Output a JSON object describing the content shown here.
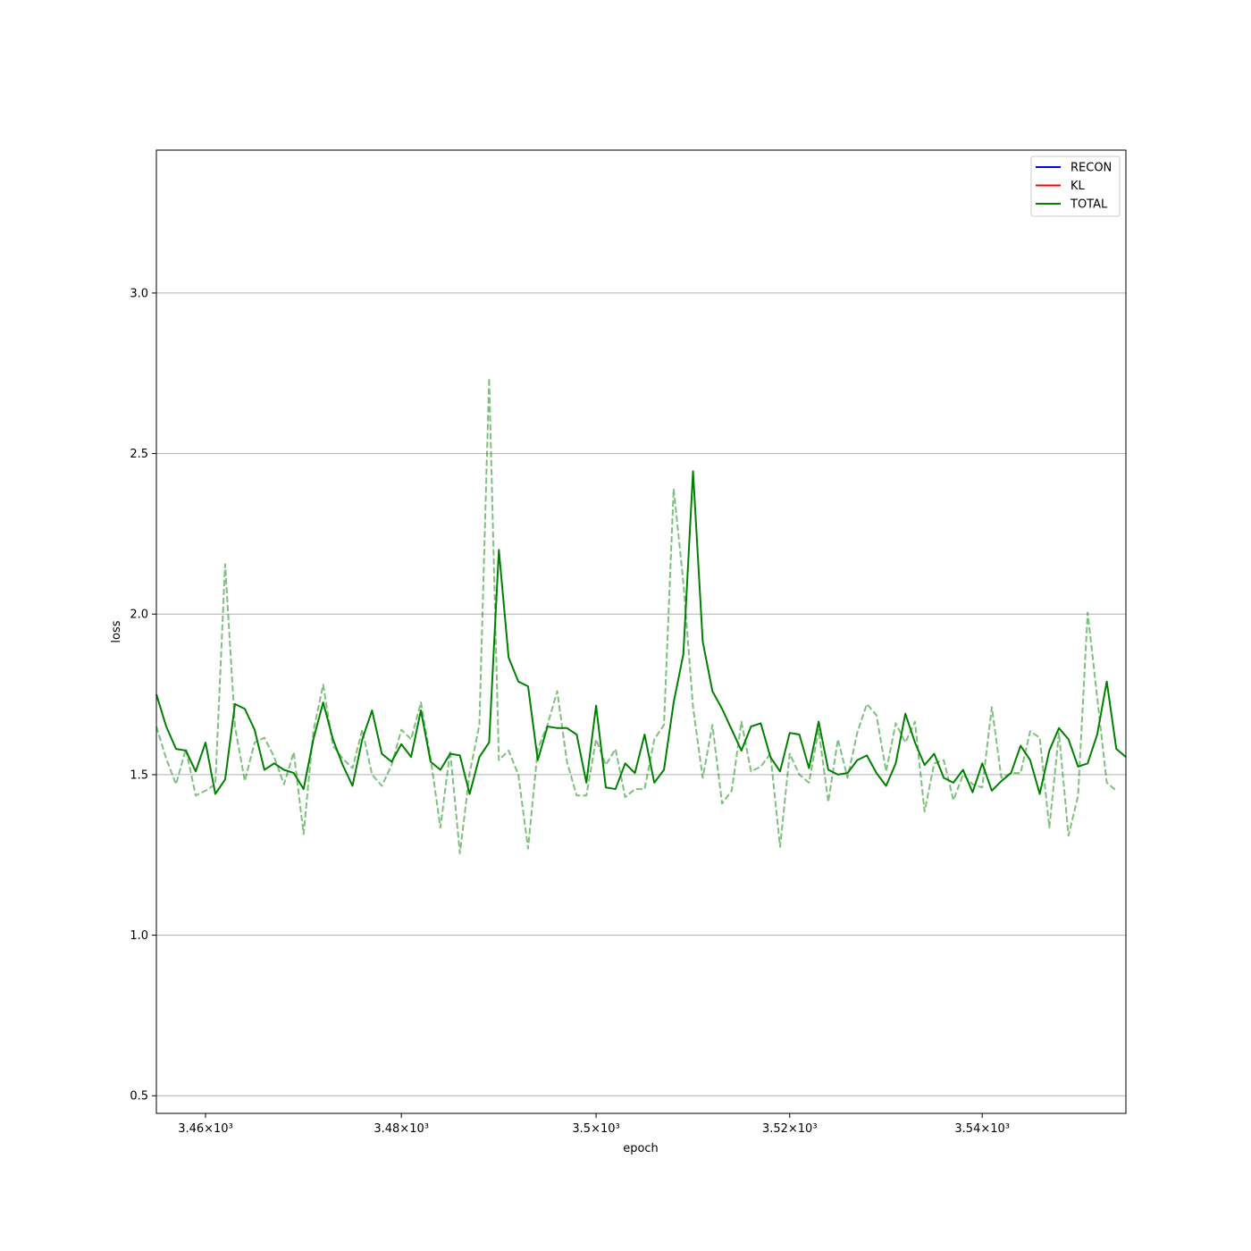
{
  "chart_data": {
    "type": "line",
    "title": "",
    "xlabel": "epoch",
    "ylabel": "loss",
    "x_scale": "log",
    "xlim": [
      3455,
      3555
    ],
    "ylim": [
      0.445,
      3.445
    ],
    "x_ticks": [
      {
        "value": 3460,
        "label": "3.46×10³"
      },
      {
        "value": 3480,
        "label": "3.48×10³"
      },
      {
        "value": 3500,
        "label": "3.5×10³"
      },
      {
        "value": 3520,
        "label": "3.52×10³"
      },
      {
        "value": 3540,
        "label": "3.54×10³"
      }
    ],
    "y_ticks": [
      {
        "value": 0.5,
        "label": "0.5"
      },
      {
        "value": 1.0,
        "label": "1.0"
      },
      {
        "value": 1.5,
        "label": "1.5"
      },
      {
        "value": 2.0,
        "label": "2.0"
      },
      {
        "value": 2.5,
        "label": "2.5"
      },
      {
        "value": 3.0,
        "label": "3.0"
      }
    ],
    "grid": "y-major",
    "legend_position": "top-right",
    "legend": [
      {
        "label": "RECON",
        "color": "#0000ff"
      },
      {
        "label": "KL",
        "color": "#ff0000"
      },
      {
        "label": "TOTAL",
        "color": "#008000"
      }
    ],
    "x_start": 3455,
    "x_step": 1,
    "series": [
      {
        "name": "TOTAL",
        "color": "#008000",
        "style": "solid",
        "values": [
          1.75,
          1.65,
          1.58,
          1.575,
          1.51,
          1.6,
          1.44,
          1.485,
          1.72,
          1.705,
          1.64,
          1.515,
          1.535,
          1.515,
          1.505,
          1.455,
          1.61,
          1.725,
          1.61,
          1.53,
          1.465,
          1.61,
          1.7,
          1.565,
          1.54,
          1.595,
          1.555,
          1.7,
          1.54,
          1.515,
          1.565,
          1.56,
          1.44,
          1.555,
          1.6,
          2.2,
          1.865,
          1.79,
          1.775,
          1.545,
          1.65,
          1.645,
          1.645,
          1.625,
          1.475,
          1.715,
          1.46,
          1.455,
          1.535,
          1.505,
          1.625,
          1.475,
          1.515,
          1.725,
          1.875,
          2.445,
          1.915,
          1.76,
          1.705,
          1.64,
          1.575,
          1.65,
          1.66,
          1.555,
          1.51,
          1.63,
          1.625,
          1.52,
          1.665,
          1.515,
          1.5,
          1.505,
          1.545,
          1.56,
          1.505,
          1.465,
          1.535,
          1.69,
          1.6,
          1.53,
          1.565,
          1.49,
          1.475,
          1.515,
          1.445,
          1.535,
          1.45,
          1.48,
          1.505,
          1.59,
          1.545,
          1.44,
          1.575,
          1.645,
          1.61,
          1.525,
          1.535,
          1.625,
          1.79,
          1.58,
          1.555
        ]
      },
      {
        "name": "",
        "color": "#008000",
        "style": "dashed",
        "opacity": 0.5,
        "values": [
          1.65,
          1.55,
          1.47,
          1.58,
          1.435,
          1.45,
          1.47,
          2.155,
          1.65,
          1.48,
          1.6,
          1.615,
          1.555,
          1.47,
          1.57,
          1.315,
          1.635,
          1.78,
          1.59,
          1.55,
          1.52,
          1.64,
          1.5,
          1.465,
          1.53,
          1.64,
          1.61,
          1.725,
          1.55,
          1.335,
          1.575,
          1.255,
          1.505,
          1.655,
          2.735,
          1.545,
          1.575,
          1.5,
          1.27,
          1.58,
          1.655,
          1.76,
          1.54,
          1.435,
          1.435,
          1.61,
          1.53,
          1.58,
          1.43,
          1.455,
          1.455,
          1.61,
          1.655,
          2.39,
          2.1,
          1.71,
          1.49,
          1.655,
          1.41,
          1.45,
          1.665,
          1.51,
          1.525,
          1.565,
          1.275,
          1.565,
          1.5,
          1.475,
          1.64,
          1.415,
          1.61,
          1.49,
          1.63,
          1.72,
          1.685,
          1.51,
          1.66,
          1.6,
          1.665,
          1.385,
          1.535,
          1.545,
          1.42,
          1.5,
          1.47,
          1.46,
          1.71,
          1.49,
          1.505,
          1.505,
          1.635,
          1.615,
          1.335,
          1.63,
          1.31,
          1.435,
          2.005,
          1.74,
          1.475,
          1.45
        ]
      }
    ]
  }
}
